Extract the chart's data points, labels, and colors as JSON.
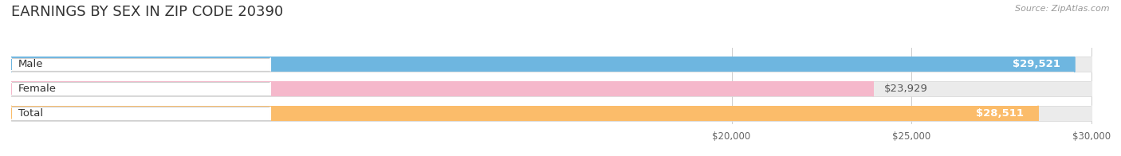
{
  "title": "EARNINGS BY SEX IN ZIP CODE 20390",
  "source": "Source: ZipAtlas.com",
  "categories": [
    "Male",
    "Female",
    "Total"
  ],
  "values": [
    29521,
    23929,
    28511
  ],
  "bar_colors": [
    "#6eb6e0",
    "#f5b8cb",
    "#fbbc6a"
  ],
  "bar_bg_color": "#ebebeb",
  "xmin": 0,
  "xmax": 30000,
  "xlim_min": 0,
  "xlim_max": 30500,
  "xticks": [
    20000,
    25000,
    30000
  ],
  "xtick_labels": [
    "$20,000",
    "$25,000",
    "$30,000"
  ],
  "bar_height": 0.62,
  "value_labels": [
    "$29,521",
    "$23,929",
    "$28,511"
  ],
  "value_inside": [
    true,
    false,
    true
  ],
  "title_fontsize": 13,
  "label_fontsize": 9.5,
  "tick_fontsize": 8.5,
  "source_fontsize": 8
}
